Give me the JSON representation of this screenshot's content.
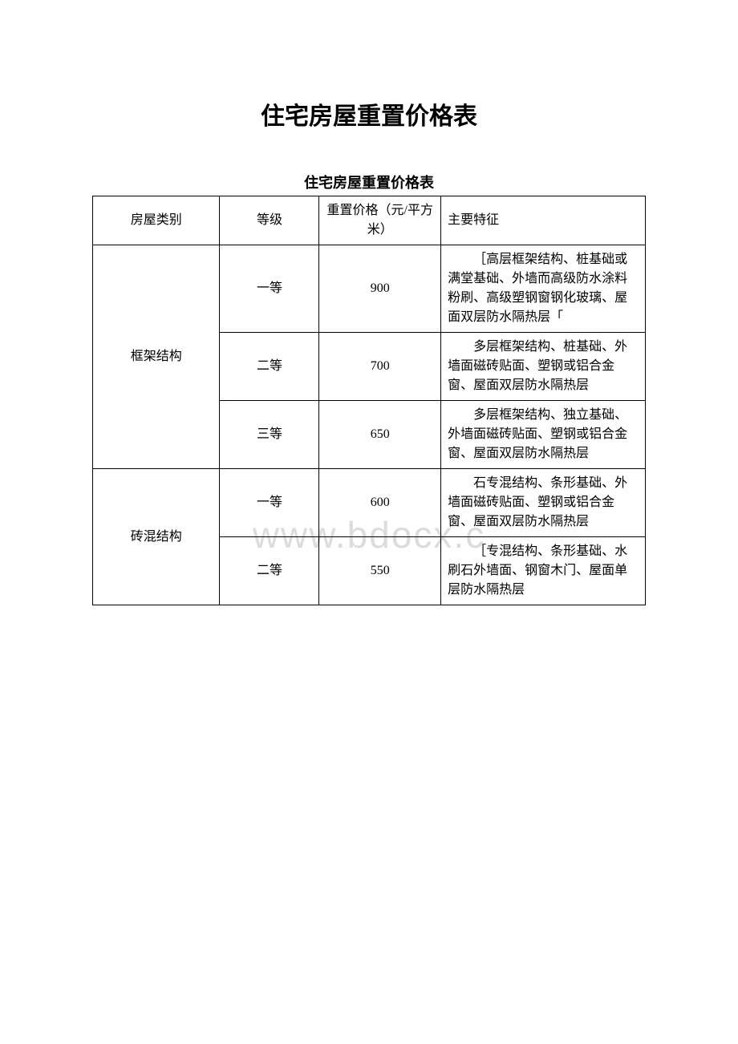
{
  "watermark": "www.bdocx.c",
  "mainTitle": "住宅房屋重置价格表",
  "subTitle": "住宅房屋重置价格表",
  "headers": {
    "category": "房屋类别",
    "grade": "等级",
    "price": "重置价格（元/平方米）",
    "features": "主要特征"
  },
  "rows": [
    {
      "category": "框架结构",
      "categoryRowspan": 3,
      "grade": "一等",
      "price": "900",
      "features": "［高层框架结构、桩基础或满堂基础、外墙而高级防水涂料粉刷、高级塑钢窗钢化玻璃、屋面双层防水隔热层「"
    },
    {
      "grade": "二等",
      "price": "700",
      "features": "多层框架结构、桩基础、外墙面磁砖贴面、塑钢或铝合金窗、屋面双层防水隔热层"
    },
    {
      "grade": "三等",
      "price": "650",
      "features": "多层框架结构、独立基础、外墙面磁砖贴面、塑钢或铝合金窗、屋面双层防水隔热层"
    },
    {
      "category": "砖混结构",
      "categoryRowspan": 2,
      "grade": "一等",
      "price": "600",
      "features": "石专混结构、条形基础、外墙面磁砖贴面、塑钢或铝合金窗、屋面双层防水隔热层"
    },
    {
      "grade": "二等",
      "price": "550",
      "features": "［专混结构、条形基础、水刷石外墙面、钢窗木门、屋面单层防水隔热层"
    }
  ]
}
